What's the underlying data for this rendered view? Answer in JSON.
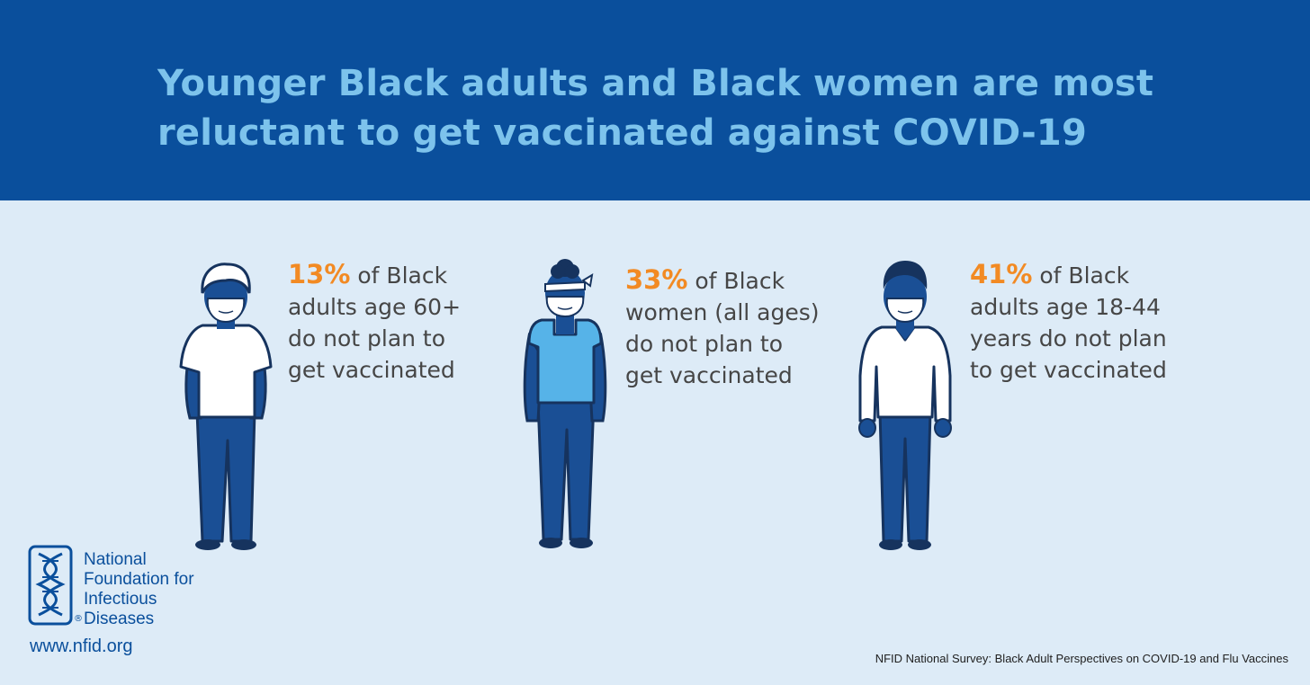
{
  "header": {
    "title_line1": "Younger Black adults and Black women are most",
    "title_line2": "reluctant to get vaccinated against COVID-19"
  },
  "stats": [
    {
      "percent": "13%",
      "line1_rest": " of Black",
      "line2": "adults age 60+",
      "line3": "do not plan to",
      "line4": "get vaccinated",
      "figure_icon": "older-man-with-mask"
    },
    {
      "percent": "33%",
      "line1_rest": " of Black",
      "line2": "women (all ages)",
      "line3": "do not plan to",
      "line4": "get vaccinated",
      "figure_icon": "woman-with-mask"
    },
    {
      "percent": "41%",
      "line1_rest": " of Black",
      "line2": "adults age 18-44",
      "line3": "years do not plan",
      "line4": "to get vaccinated",
      "figure_icon": "young-man-with-mask"
    }
  ],
  "logo": {
    "icon": "dna-helix-logo",
    "line1": "National",
    "line2": "Foundation for",
    "line3": "Infectious",
    "line4": "Diseases",
    "registered_mark": "®"
  },
  "url": "www.nfid.org",
  "source": "NFID National Survey: Black Adult Perspectives on COVID-19 and Flu Vaccines",
  "colors": {
    "header_bg": "#0a4f9c",
    "title_text": "#7dc3ec",
    "body_bg": "#ddebf7",
    "percent_accent": "#f28a23",
    "figure_navy": "#1a4f95",
    "figure_dark": "#16335e"
  }
}
